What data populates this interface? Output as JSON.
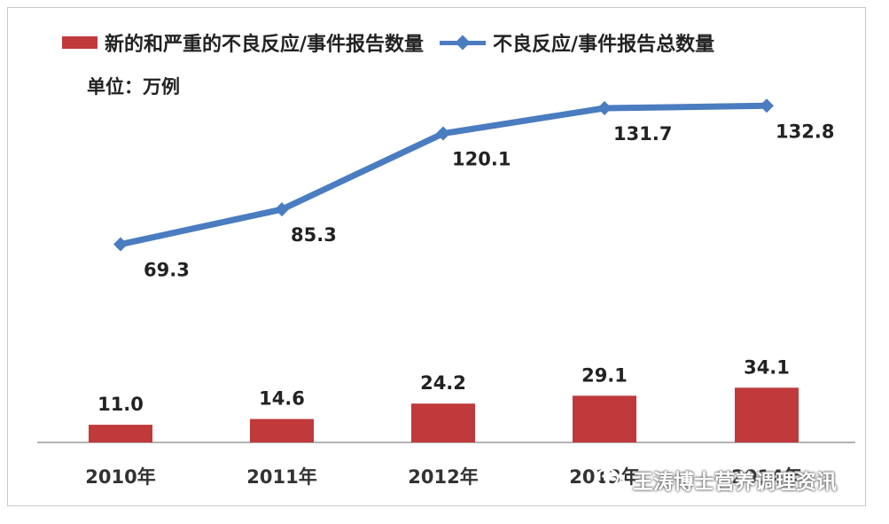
{
  "chart_data": {
    "type": "bar+line",
    "categories": [
      "2010年",
      "2011年",
      "2012年",
      "2013年",
      "2014年"
    ],
    "series": [
      {
        "name": "新的和严重的不良反应/事件报告数量",
        "kind": "bar",
        "values": [
          11.0,
          14.6,
          24.2,
          29.1,
          34.1
        ],
        "labels": [
          "11.0",
          "14.6",
          "24.2",
          "29.1",
          "34.1"
        ]
      },
      {
        "name": "不良反应/事件报告总数量",
        "kind": "line",
        "values": [
          69.3,
          85.3,
          120.1,
          131.7,
          132.8
        ],
        "labels": [
          "69.3",
          "85.3",
          "120.1",
          "131.7",
          "132.8"
        ]
      }
    ],
    "unit_label": "单位：万例",
    "ylim": [
      0,
      140
    ],
    "grid": false,
    "legend_position": "top",
    "colors": {
      "bar": "#c0393b",
      "line": "#4a7cc0"
    }
  },
  "watermark": {
    "text": "王涛博士营养调理资讯",
    "icon": "wechat-icon"
  }
}
